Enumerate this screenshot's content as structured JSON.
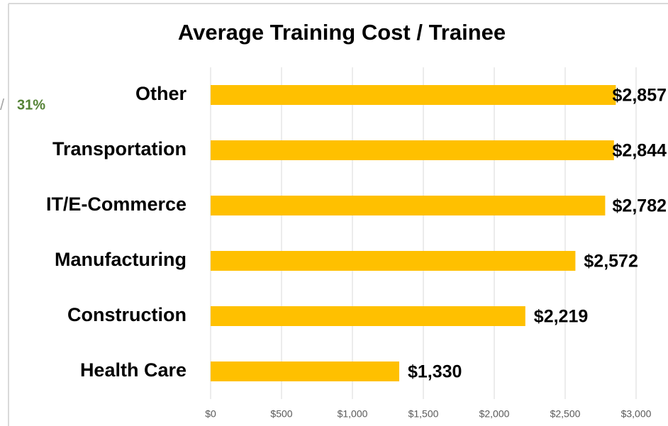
{
  "chart_data": {
    "type": "hbar",
    "title": "Average Training Cost / Trainee",
    "annotations": [
      "/",
      "31%"
    ],
    "categories": [
      "Other",
      "Transportation",
      "IT/E-Commerce",
      "Manufacturing",
      "Construction",
      "Health Care"
    ],
    "values": [
      2857,
      2844,
      2782,
      2572,
      2219,
      1330
    ],
    "value_labels": [
      "$2,857",
      "$2,844",
      "$2,782",
      "$2,572",
      "$2,219",
      "$1,330"
    ],
    "color": "#ffc000",
    "xlim": [
      0,
      3000
    ],
    "xticks": [
      {
        "value": 0,
        "label": "$0"
      },
      {
        "value": 500,
        "label": "$500"
      },
      {
        "value": 1000,
        "label": "$1,000"
      },
      {
        "value": 1500,
        "label": "$1,500"
      },
      {
        "value": 2000,
        "label": "$2,000"
      },
      {
        "value": 2500,
        "label": "$2,500"
      },
      {
        "value": 3000,
        "label": "$3,000"
      }
    ],
    "grid": true
  }
}
